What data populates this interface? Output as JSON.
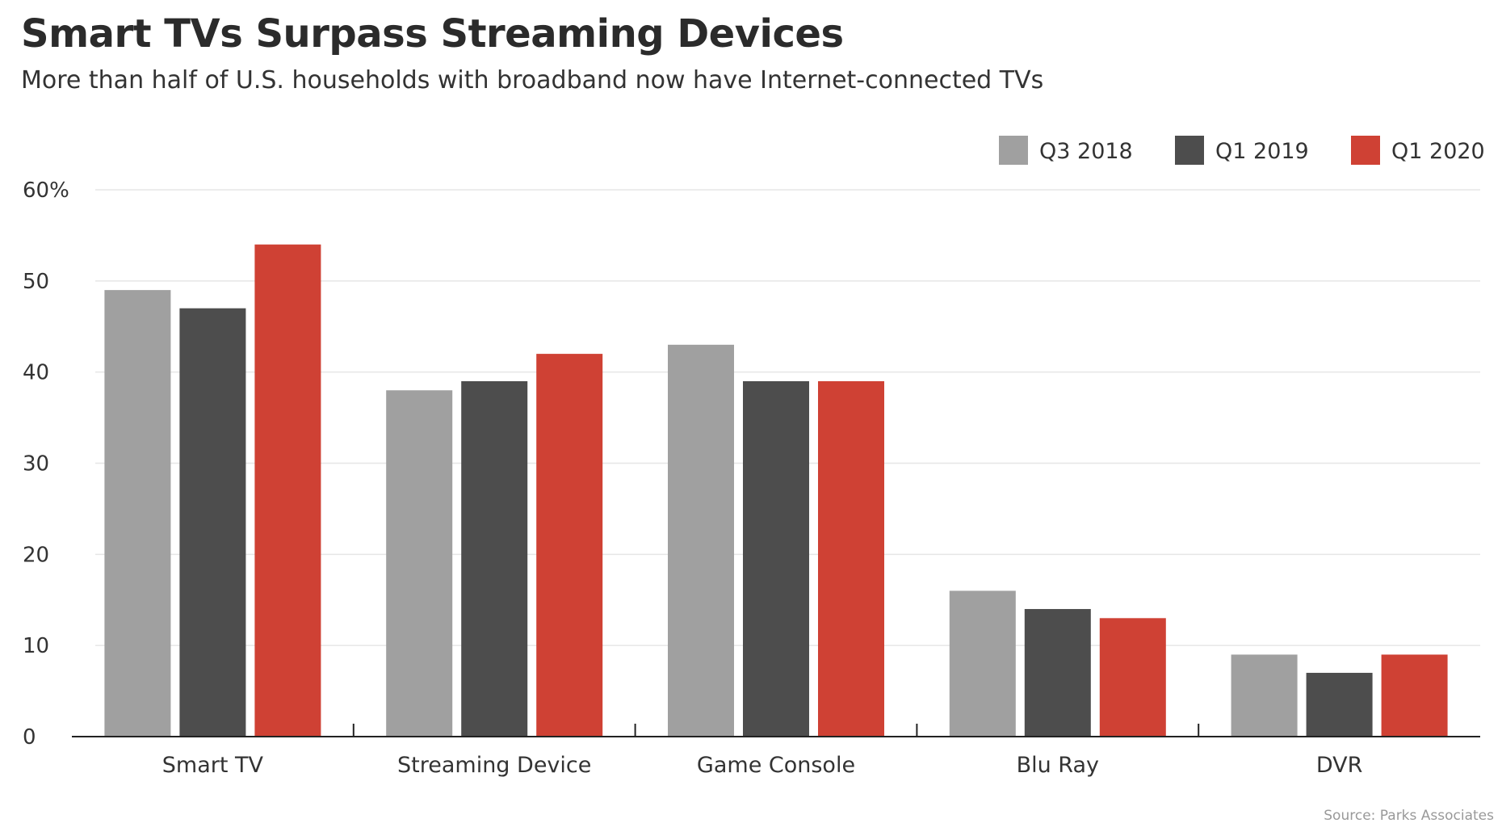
{
  "chart_data": {
    "type": "bar",
    "title": "Smart TVs Surpass Streaming Devices",
    "subtitle": "More than half of U.S. households with broadband now have Internet-connected TVs",
    "source": "Source: Parks Associates",
    "categories": [
      "Smart TV",
      "Streaming Device",
      "Game Console",
      "Blu Ray",
      "DVR"
    ],
    "series": [
      {
        "name": "Q3 2018",
        "color": "#a0a0a0",
        "values": [
          49,
          38,
          43,
          16,
          9
        ]
      },
      {
        "name": "Q1 2019",
        "color": "#4d4d4d",
        "values": [
          47,
          39,
          39,
          14,
          7
        ]
      },
      {
        "name": "Q1 2020",
        "color": "#cf4134",
        "values": [
          54,
          42,
          39,
          13,
          9
        ]
      }
    ],
    "yticks": [
      0,
      10,
      20,
      30,
      40,
      50,
      60
    ],
    "ytick_labels": [
      "0",
      "10",
      "20",
      "30",
      "40",
      "50",
      "60%"
    ],
    "ylim": [
      0,
      60
    ],
    "grid": true,
    "legend": "top-right",
    "xlabel": "",
    "ylabel": ""
  }
}
